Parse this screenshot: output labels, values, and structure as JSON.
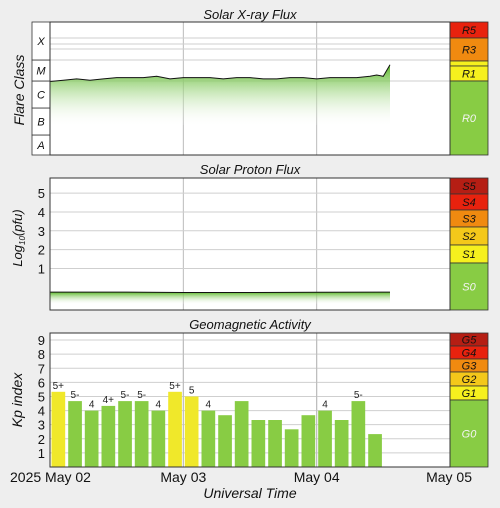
{
  "chart_data": [
    {
      "type": "line",
      "title": "Solar X-ray Flux",
      "ylabel": "Flare Class",
      "y_classes": [
        "A",
        "B",
        "C",
        "M",
        "X"
      ],
      "x_ticks": [
        "2025 May 02",
        "May 03",
        "May 04",
        "May 05"
      ],
      "x_days": [
        2,
        3,
        4,
        5
      ],
      "data_end_day": 4.55,
      "series": [
        {
          "x_day": [
            2.0,
            2.1,
            2.2,
            2.3,
            2.4,
            2.5,
            2.6,
            2.7,
            2.8,
            2.9,
            3.0,
            3.1,
            3.2,
            3.3,
            3.4,
            3.5,
            3.6,
            3.7,
            3.8,
            3.9,
            4.0,
            4.1,
            4.2,
            4.3,
            4.4,
            4.45,
            4.5,
            4.55
          ],
          "class_level": [
            2.85,
            2.9,
            2.95,
            2.9,
            2.95,
            3.0,
            3.0,
            3.0,
            3.05,
            2.95,
            3.0,
            3.0,
            3.0,
            2.95,
            3.0,
            3.0,
            2.95,
            2.95,
            3.0,
            3.0,
            2.95,
            3.0,
            3.0,
            3.0,
            3.05,
            3.1,
            3.05,
            3.5
          ]
        }
      ],
      "scale_labels": [
        "R5",
        "R3",
        "R1",
        "R0"
      ],
      "scale_colors": [
        "#e8220e",
        "#f08a10",
        "#f6f01e",
        "#88cc44"
      ]
    },
    {
      "type": "line",
      "title": "Solar Proton Flux",
      "ylabel": "Log10(pfu)",
      "ylabel_main": "Log",
      "ylabel_sub": "10",
      "ylabel_tail": "(pfu)",
      "y_ticks": [
        1,
        2,
        3,
        4,
        5
      ],
      "ylim": [
        -1.2,
        5.8
      ],
      "data_end_day": 4.55,
      "series": [
        {
          "x_day": [
            2.0,
            2.5,
            3.0,
            3.5,
            4.0,
            4.55
          ],
          "log10_pfu": [
            -0.25,
            -0.25,
            -0.27,
            -0.27,
            -0.26,
            -0.25
          ]
        }
      ],
      "scale_labels": [
        "S5",
        "S4",
        "S3",
        "S2",
        "S1",
        "S0"
      ],
      "scale_colors": [
        "#b51e14",
        "#e8220e",
        "#f08a10",
        "#f4c81a",
        "#f6f01e",
        "#88cc44"
      ]
    },
    {
      "type": "bar",
      "title": "Geomagnetic Activity",
      "ylabel": "Kp index",
      "y_ticks": [
        1,
        2,
        3,
        4,
        5,
        6,
        7,
        8,
        9
      ],
      "ylim": [
        0,
        9.5
      ],
      "x_axis_label": "Universal Time",
      "bar_start_day": 2.0,
      "bar_width_days": 0.125,
      "values": [
        5.33,
        4.67,
        4.0,
        4.33,
        4.67,
        4.67,
        4.0,
        5.33,
        5.0,
        4.0,
        3.67,
        4.67,
        3.33,
        3.33,
        2.67,
        3.67,
        4.0,
        3.33,
        4.67,
        2.33
      ],
      "value_labels": [
        "5+",
        "5-",
        "4",
        "4+",
        "5-",
        "5-",
        "4",
        "5+",
        "5",
        "4",
        "",
        "",
        "",
        "",
        "",
        "",
        "4",
        "",
        "5-",
        ""
      ],
      "bar_colors": [
        "#f0e82a",
        "#88cc44",
        "#88cc44",
        "#88cc44",
        "#88cc44",
        "#88cc44",
        "#88cc44",
        "#f0e82a",
        "#f0e82a",
        "#88cc44",
        "#88cc44",
        "#88cc44",
        "#88cc44",
        "#88cc44",
        "#88cc44",
        "#88cc44",
        "#88cc44",
        "#88cc44",
        "#88cc44",
        "#88cc44"
      ],
      "scale_labels": [
        "G5",
        "G4",
        "G3",
        "G2",
        "G1",
        "G0"
      ],
      "scale_colors": [
        "#b51e14",
        "#e8220e",
        "#f08a10",
        "#f4c81a",
        "#f6f01e",
        "#88cc44"
      ]
    }
  ]
}
